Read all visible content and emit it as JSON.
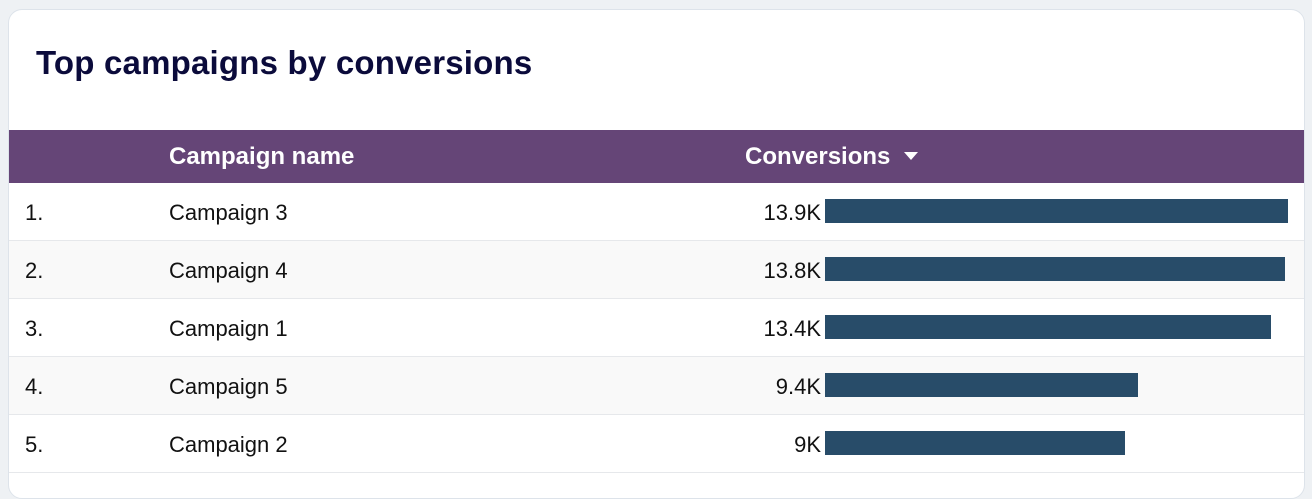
{
  "card": {
    "title": "Top campaigns by conversions"
  },
  "colors": {
    "header_bg": "#654577",
    "bar": "#284c69",
    "title": "#0b0b3b"
  },
  "table": {
    "columns": {
      "name": "Campaign name",
      "metric": "Conversions"
    },
    "sort": "descending",
    "rows": [
      {
        "rank": "1.",
        "name": "Campaign 3",
        "value_label": "13.9K"
      },
      {
        "rank": "2.",
        "name": "Campaign 4",
        "value_label": "13.8K"
      },
      {
        "rank": "3.",
        "name": "Campaign 1",
        "value_label": "13.4K"
      },
      {
        "rank": "4.",
        "name": "Campaign 5",
        "value_label": "9.4K"
      },
      {
        "rank": "5.",
        "name": "Campaign 2",
        "value_label": "9K"
      }
    ]
  },
  "chart_data": {
    "type": "bar",
    "title": "Top campaigns by conversions",
    "categories": [
      "Campaign 3",
      "Campaign 4",
      "Campaign 1",
      "Campaign 5",
      "Campaign 2"
    ],
    "series": [
      {
        "name": "Conversions",
        "values": [
          13900,
          13800,
          13400,
          9400,
          9000
        ]
      }
    ],
    "orientation": "horizontal",
    "grid": false
  }
}
